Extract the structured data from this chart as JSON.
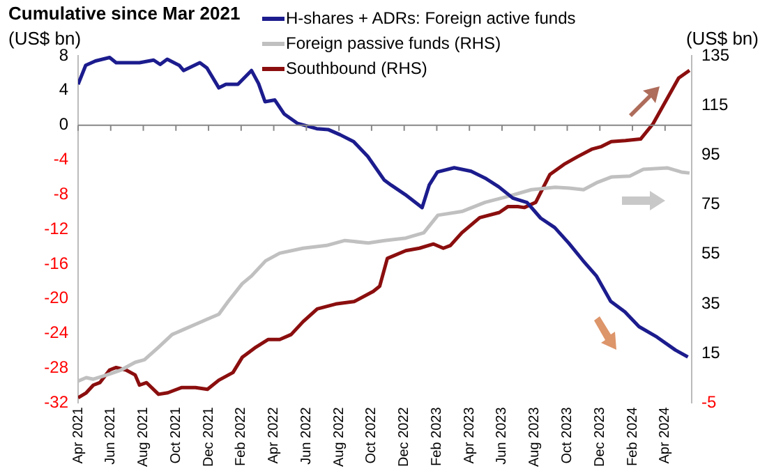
{
  "chart_data": {
    "type": "line",
    "title": "Cumulative since Mar 2021",
    "ylabel": "(US$ bn)",
    "y2label": "(US$ bn)",
    "xlim": [
      "2021-04-01",
      "2024-05-20"
    ],
    "xticks": [
      {
        "value": "2021-04-01",
        "label": "Apr 2021"
      },
      {
        "value": "2021-06-01",
        "label": "Jun 2021"
      },
      {
        "value": "2021-08-01",
        "label": "Aug 2021"
      },
      {
        "value": "2021-10-01",
        "label": "Oct 2021"
      },
      {
        "value": "2021-12-01",
        "label": "Dec 2021"
      },
      {
        "value": "2022-02-01",
        "label": "Feb 2022"
      },
      {
        "value": "2022-04-01",
        "label": "Apr 2022"
      },
      {
        "value": "2022-06-01",
        "label": "Jun 2022"
      },
      {
        "value": "2022-08-01",
        "label": "Aug 2022"
      },
      {
        "value": "2022-10-01",
        "label": "Oct 2022"
      },
      {
        "value": "2022-12-01",
        "label": "Dec 2022"
      },
      {
        "value": "2023-02-01",
        "label": "Feb 2023"
      },
      {
        "value": "2023-04-01",
        "label": "Apr 2023"
      },
      {
        "value": "2023-06-01",
        "label": "Jun 2023"
      },
      {
        "value": "2023-08-01",
        "label": "Aug 2023"
      },
      {
        "value": "2023-10-01",
        "label": "Oct 2023"
      },
      {
        "value": "2023-12-01",
        "label": "Dec 2023"
      },
      {
        "value": "2024-02-01",
        "label": "Feb 2024"
      },
      {
        "value": "2024-04-01",
        "label": "Apr 2024"
      }
    ],
    "ylim": [
      -32,
      8
    ],
    "yticks": [
      -32,
      -28,
      -24,
      -20,
      -16,
      -12,
      -8,
      -4,
      0,
      4,
      8
    ],
    "y2lim": [
      -5,
      135
    ],
    "y2ticks": [
      -5,
      15,
      35,
      55,
      75,
      95,
      115,
      135
    ],
    "legend": "top",
    "ref_lines": [
      {
        "axis": "y",
        "value": 0,
        "color": "#888888"
      }
    ],
    "marker": "none",
    "line_style": "solid",
    "series": [
      {
        "name": "H-shares + ADRs: Foreign active funds",
        "color": "#1c1c8e",
        "x": [
          "2021-04-01",
          "2021-04-15",
          "2021-05-03",
          "2021-05-29",
          "2021-06-11",
          "2021-06-28",
          "2021-07-24",
          "2021-08-20",
          "2021-09-02",
          "2021-09-15",
          "2021-10-07",
          "2021-10-15",
          "2021-11-15",
          "2021-11-28",
          "2021-12-20",
          "2022-01-03",
          "2022-01-25",
          "2022-02-20",
          "2022-03-03",
          "2022-03-15",
          "2022-04-03",
          "2022-04-20",
          "2022-05-15",
          "2022-06-20",
          "2022-07-11",
          "2022-08-03",
          "2022-08-28",
          "2022-09-24",
          "2022-10-24",
          "2022-11-07",
          "2022-12-03",
          "2023-01-04",
          "2023-01-17",
          "2023-02-02",
          "2023-03-03",
          "2023-04-04",
          "2023-04-30",
          "2023-05-25",
          "2023-06-21",
          "2023-07-17",
          "2023-08-12",
          "2023-09-08",
          "2023-10-04",
          "2023-10-30",
          "2023-11-25",
          "2023-12-21",
          "2024-01-17",
          "2024-02-13",
          "2024-03-16",
          "2024-04-20",
          "2024-05-13"
        ],
        "values": [
          4.7,
          6.9,
          7.4,
          7.8,
          7.2,
          7.2,
          7.2,
          7.5,
          7.0,
          7.6,
          6.9,
          6.3,
          7.2,
          6.6,
          4.3,
          4.7,
          4.7,
          6.3,
          4.8,
          2.7,
          2.9,
          1.3,
          0.2,
          -0.4,
          -0.5,
          -1.1,
          -1.9,
          -3.6,
          -6.3,
          -6.9,
          -8.0,
          -9.5,
          -6.9,
          -5.4,
          -4.9,
          -5.3,
          -6.1,
          -7.1,
          -8.4,
          -8.9,
          -10.7,
          -11.8,
          -13.6,
          -15.6,
          -17.4,
          -20.3,
          -21.5,
          -23.2,
          -24.4,
          -25.9,
          -26.7
        ]
      },
      {
        "name": "Foreign passive funds (RHS)",
        "color": "#c0c0c0",
        "axis": "y2",
        "x": [
          "2021-04-01",
          "2021-04-16",
          "2021-04-29",
          "2021-05-24",
          "2021-06-20",
          "2021-07-16",
          "2021-08-03",
          "2021-08-29",
          "2021-09-24",
          "2021-10-16",
          "2021-11-07",
          "2021-11-29",
          "2021-12-20",
          "2022-01-07",
          "2022-02-03",
          "2022-02-20",
          "2022-03-16",
          "2022-04-12",
          "2022-05-25",
          "2022-07-08",
          "2022-08-12",
          "2022-09-25",
          "2022-10-25",
          "2022-12-04",
          "2023-01-07",
          "2023-02-03",
          "2023-03-17",
          "2023-04-30",
          "2023-06-12",
          "2023-07-25",
          "2023-09-09",
          "2023-10-05",
          "2023-10-31",
          "2023-11-27",
          "2023-12-22",
          "2024-01-26",
          "2024-02-21",
          "2024-04-05",
          "2024-05-01",
          "2024-05-16"
        ],
        "values": [
          3.8,
          5.2,
          4.6,
          6.3,
          8.3,
          11.4,
          12.4,
          17.5,
          22.6,
          24.7,
          26.7,
          28.8,
          30.8,
          35.9,
          43.1,
          46.2,
          52.3,
          55.4,
          57.4,
          58.5,
          60.5,
          59.5,
          60.5,
          61.5,
          63.6,
          70.7,
          72.2,
          75.9,
          78.3,
          81.0,
          82.0,
          81.6,
          81.0,
          84.0,
          86.1,
          86.5,
          89.2,
          89.8,
          88.1,
          87.7
        ]
      },
      {
        "name": "Southbound (RHS)",
        "color": "#8b0e0e",
        "axis": "y2",
        "x": [
          "2021-04-01",
          "2021-04-16",
          "2021-04-29",
          "2021-05-11",
          "2021-05-29",
          "2021-06-11",
          "2021-06-29",
          "2021-07-16",
          "2021-07-24",
          "2021-08-07",
          "2021-08-29",
          "2021-09-16",
          "2021-10-11",
          "2021-11-07",
          "2021-11-29",
          "2021-12-20",
          "2022-01-16",
          "2022-02-03",
          "2022-02-28",
          "2022-03-21",
          "2022-04-12",
          "2022-05-03",
          "2022-05-25",
          "2022-06-21",
          "2022-07-25",
          "2022-08-29",
          "2022-10-04",
          "2022-10-16",
          "2022-10-30",
          "2022-12-04",
          "2022-12-29",
          "2023-01-25",
          "2023-02-13",
          "2023-02-26",
          "2023-03-17",
          "2023-04-20",
          "2023-05-26",
          "2023-06-12",
          "2023-06-30",
          "2023-07-12",
          "2023-08-03",
          "2023-08-29",
          "2023-09-25",
          "2023-10-20",
          "2023-11-16",
          "2023-12-04",
          "2023-12-22",
          "2024-01-18",
          "2024-02-16",
          "2024-03-09",
          "2024-04-05",
          "2024-04-26",
          "2024-05-16"
        ],
        "values": [
          -2.9,
          -0.9,
          2.2,
          3.2,
          8.3,
          9.3,
          8.3,
          6.3,
          2.2,
          3.2,
          -1.5,
          -0.9,
          1.2,
          1.2,
          0.5,
          4.2,
          7.3,
          13.4,
          17.5,
          20.6,
          20.6,
          22.6,
          27.8,
          32.9,
          34.9,
          35.9,
          40.0,
          42.1,
          53.3,
          56.4,
          57.4,
          59.1,
          57.4,
          58.5,
          63.6,
          69.7,
          71.8,
          74.2,
          74.2,
          73.8,
          75.9,
          87.1,
          91.2,
          94.3,
          97.3,
          98.4,
          100.4,
          100.8,
          101.4,
          107.6,
          117.8,
          126.0,
          129.1
        ]
      }
    ]
  }
}
